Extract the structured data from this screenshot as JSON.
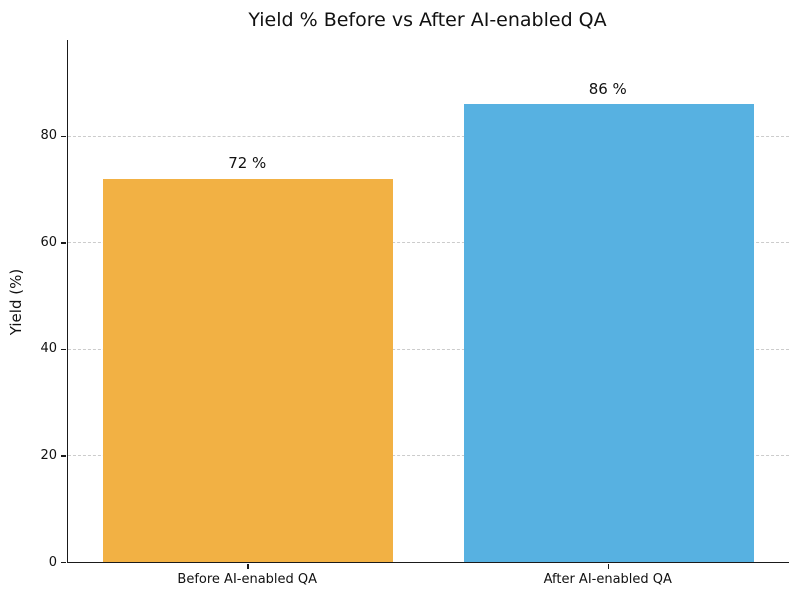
{
  "chart_data": {
    "type": "bar",
    "title": "Yield % Before vs After AI-enabled QA",
    "xlabel": "",
    "ylabel": "Yield (%)",
    "categories": [
      "Before AI-enabled QA",
      "After AI-enabled QA"
    ],
    "values": [
      72,
      86
    ],
    "bar_labels": [
      "72 %",
      "86 %"
    ],
    "bar_colors": [
      "#F2B144",
      "#57B1E1"
    ],
    "yticks": [
      0,
      20,
      40,
      60,
      80
    ],
    "ylim": [
      0,
      98
    ],
    "grid": "horizontal-dashed",
    "gridline_color": "#cccccc",
    "legend_position": "none"
  }
}
